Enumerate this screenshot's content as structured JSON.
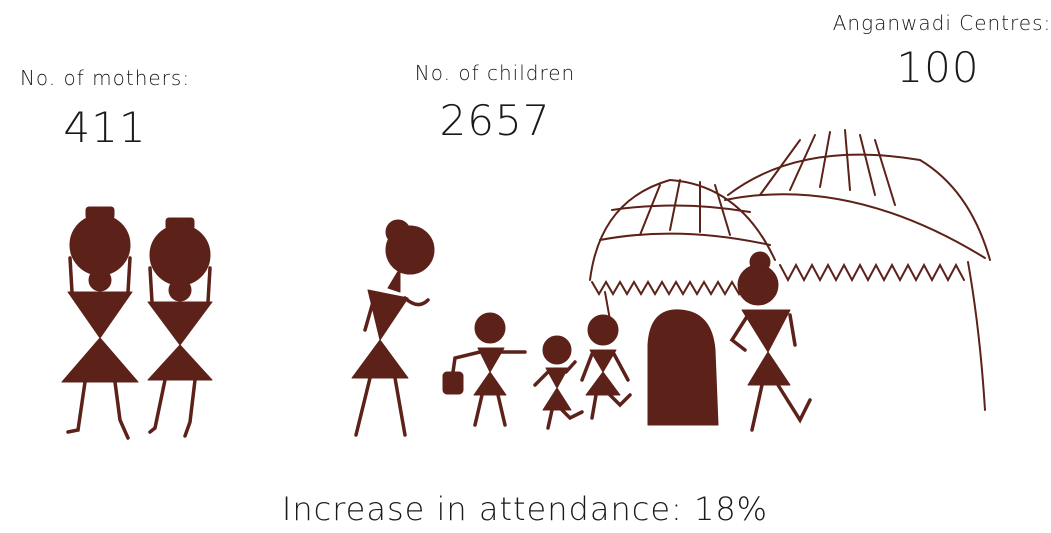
{
  "stats": {
    "mothers": {
      "label": "No. of mothers:",
      "value": "411"
    },
    "children": {
      "label": "No. of children",
      "value": "2657"
    },
    "centres": {
      "label": "Anganwadi Centres:",
      "value": "100"
    }
  },
  "footer": "Increase in attendance: 18%"
}
